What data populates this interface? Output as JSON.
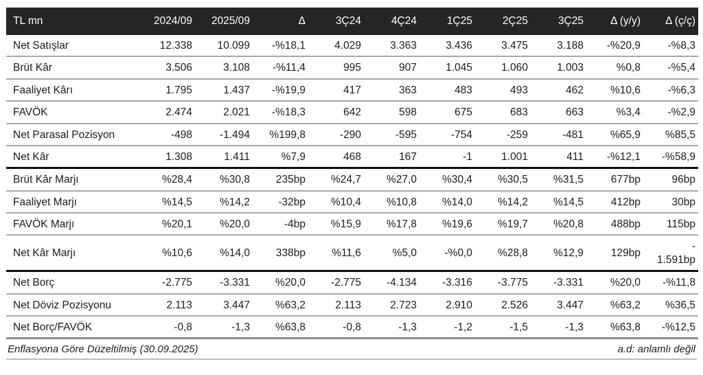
{
  "table": {
    "unit_label": "TL mn",
    "columns": [
      "TL mn",
      "2024/09",
      "2025/09",
      "Δ",
      "3Ç24",
      "4Ç24",
      "1Ç25",
      "2Ç25",
      "3Ç25",
      "Δ (y/y)",
      "Δ (ç/ç)"
    ],
    "sections": [
      {
        "name": "income-statement",
        "rows": [
          {
            "label": "Net Satışlar",
            "values": [
              "12.338",
              "10.099",
              "-%18,1",
              "4.029",
              "3.363",
              "3.436",
              "3.475",
              "3.188",
              "-%20,9",
              "-%8,3"
            ]
          },
          {
            "label": "Brüt Kâr",
            "values": [
              "3.506",
              "3.108",
              "-%11,4",
              "995",
              "907",
              "1.045",
              "1.060",
              "1.003",
              "%0,8",
              "-%5,4"
            ]
          },
          {
            "label": "Faaliyet Kârı",
            "values": [
              "1.795",
              "1.437",
              "-%19,9",
              "417",
              "363",
              "483",
              "493",
              "462",
              "%10,6",
              "-%6,3"
            ]
          },
          {
            "label": "FAVÖK",
            "values": [
              "2.474",
              "2.021",
              "-%18,3",
              "642",
              "598",
              "675",
              "683",
              "663",
              "%3,4",
              "-%2,9"
            ]
          },
          {
            "label": "Net Parasal Pozisyon",
            "values": [
              "-498",
              "-1.494",
              "%199,8",
              "-290",
              "-595",
              "-754",
              "-259",
              "-481",
              "%65,9",
              "%85,5"
            ]
          },
          {
            "label": "Net Kâr",
            "values": [
              "1.308",
              "1.411",
              "%7,9",
              "468",
              "167",
              "-1",
              "1.001",
              "411",
              "-%12,1",
              "-%58,9"
            ]
          }
        ]
      },
      {
        "name": "margins",
        "rows": [
          {
            "label": "Brüt Kâr Marjı",
            "values": [
              "%28,4",
              "%30,8",
              "235bp",
              "%24,7",
              "%27,0",
              "%30,4",
              "%30,5",
              "%31,5",
              "677bp",
              "96bp"
            ]
          },
          {
            "label": "Faaliyet Marjı",
            "values": [
              "%14,5",
              "%14,2",
              "-32bp",
              "%10,4",
              "%10,8",
              "%14,0",
              "%14,2",
              "%14,5",
              "412bp",
              "30bp"
            ]
          },
          {
            "label": "FAVÖK Marjı",
            "values": [
              "%20,1",
              "%20,0",
              "-4bp",
              "%15,9",
              "%17,8",
              "%19,6",
              "%19,7",
              "%20,8",
              "488bp",
              "115bp"
            ]
          },
          {
            "label": "Net Kâr Marjı",
            "values": [
              "%10,6",
              "%14,0",
              "338bp",
              "%11,6",
              "%5,0",
              "-%0,0",
              "%28,8",
              "%12,9",
              "129bp",
              "-\n1.591bp"
            ]
          }
        ]
      },
      {
        "name": "balance-sheet",
        "rows": [
          {
            "label": "Net Borç",
            "values": [
              "-2.775",
              "-3.331",
              "%20,0",
              "-2.775",
              "-4.134",
              "-3.316",
              "-3.775",
              "-3.331",
              "%20,0",
              "-%11,8"
            ]
          },
          {
            "label": "Net Döviz Pozisyonu",
            "values": [
              "2.113",
              "3.447",
              "%63,2",
              "2.113",
              "2.723",
              "2.910",
              "2.526",
              "3.447",
              "%63,2",
              "%36,5"
            ]
          },
          {
            "label": "Net Borç/FAVÖK",
            "values": [
              "-0,8",
              "-1,3",
              "%63,8",
              "-0,8",
              "-1,3",
              "-1,2",
              "-1,5",
              "-1,3",
              "%63,8",
              "-%12,5"
            ]
          }
        ]
      }
    ],
    "footnote_left": "Enflasyona Göre Düzeltilmiş (30.09.2025)",
    "footnote_right": "a.d: anlamlı değil"
  },
  "colors": {
    "header_bg": "#272424",
    "header_text": "#ffffff",
    "body_text": "#1c1c1c",
    "row_divider": "#a9a9a9",
    "section_divider": "#0f0f0f",
    "table_end_divider": "#8f8f8f"
  }
}
